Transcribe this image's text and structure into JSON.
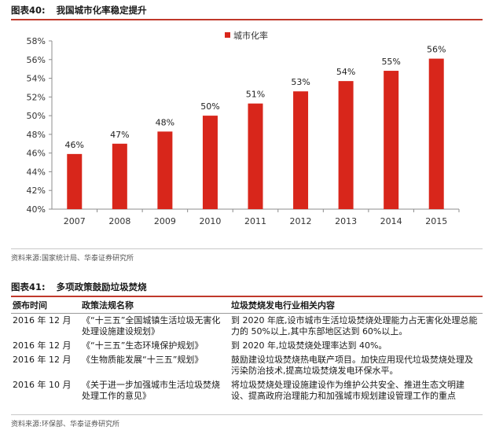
{
  "figure1": {
    "number": "图表40:",
    "title": "我国城市化率稳定提升",
    "source": "资料来源:国家统计局、华泰证券研究所"
  },
  "chart_data": {
    "type": "bar",
    "categories": [
      "2007",
      "2008",
      "2009",
      "2010",
      "2011",
      "2012",
      "2013",
      "2014",
      "2015"
    ],
    "series": [
      {
        "name": "城市化率",
        "values": [
          45.9,
          47.0,
          48.3,
          50.0,
          51.3,
          52.6,
          53.7,
          54.8,
          56.1
        ]
      }
    ],
    "data_labels": [
      "46%",
      "47%",
      "48%",
      "50%",
      "51%",
      "53%",
      "54%",
      "55%",
      "56%"
    ],
    "y_ticks": [
      "40%",
      "42%",
      "44%",
      "46%",
      "48%",
      "50%",
      "52%",
      "54%",
      "56%",
      "58%"
    ],
    "ylim": [
      40,
      58
    ],
    "legend_position": "top",
    "colors": {
      "bar": "#d8261b"
    },
    "grid": false
  },
  "figure2": {
    "number": "图表41:",
    "title": "多项政策鼓励垃圾焚烧",
    "source": "资料来源:环保部、华泰证券研究所",
    "headers": [
      "颁布时间",
      "政策法规名称",
      "垃圾焚烧发电行业相关内容"
    ],
    "rows": [
      {
        "date": "2016 年 12 月",
        "name": "《“十三五”全国城镇生活垃圾无害化处理设施建设规划》",
        "content": "到 2020 年底,设市城市生活垃圾焚烧处理能力占无害化处理总能力的 50%以上,其中东部地区达到 60%以上。"
      },
      {
        "date": "2016 年 12 月",
        "name": "《“十三五”生态环境保护规划》",
        "content": "到 2020 年,垃圾焚烧处理率达到 40%。"
      },
      {
        "date": "2016 年 12 月",
        "name": "《生物质能发展“十三五”规划》",
        "content": "鼓励建设垃圾焚烧热电联产项目。加快应用现代垃圾焚烧处理及污染防治技术,提高垃圾焚烧发电环保水平。"
      },
      {
        "date": "2016 年 10 月",
        "name": "《关于进一步加强城市生活垃圾焚烧处理工作的意见》",
        "content": "将垃圾焚烧处理设施建设作为维护公共安全、推进生态文明建设、提高政府治理能力和加强城市规划建设管理工作的重点"
      }
    ]
  }
}
